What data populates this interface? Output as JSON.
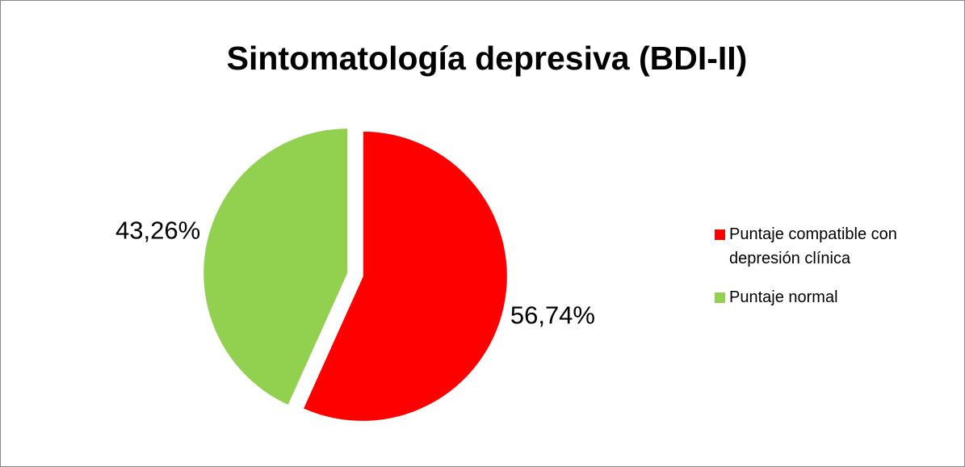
{
  "chart_data": {
    "type": "pie",
    "title": "Sintomatología depresiva (BDI-II)",
    "categories": [
      "Puntaje compatible con depresión clínica",
      "Puntaje normal"
    ],
    "values": [
      56.74,
      43.26
    ],
    "value_labels": [
      "56,74%",
      "43,26%"
    ],
    "colors": [
      "#ff0000",
      "#92d050"
    ],
    "legend": "right"
  }
}
